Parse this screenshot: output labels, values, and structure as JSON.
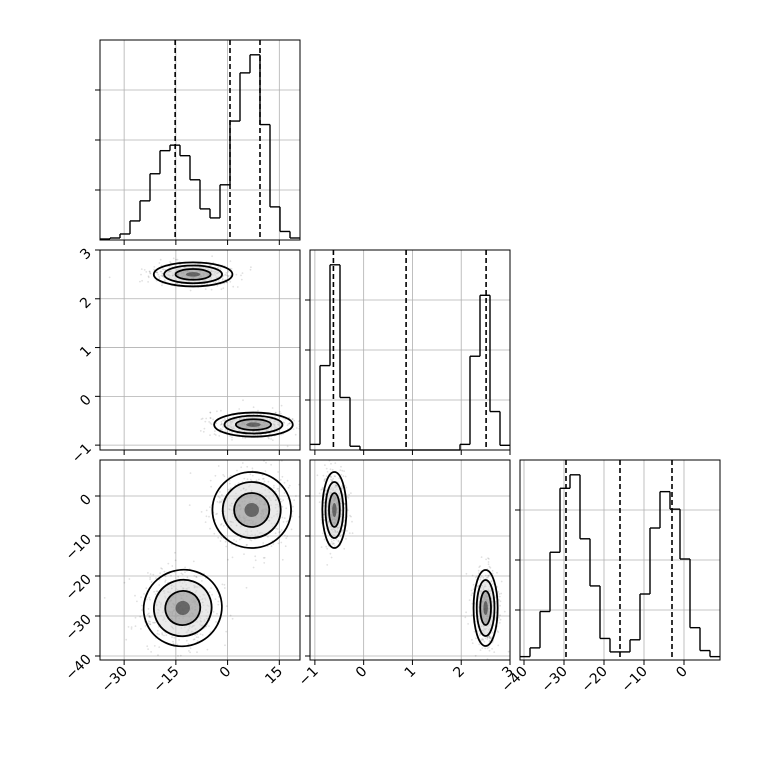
{
  "chart_data": {
    "type": "corner",
    "parameter_count": 3,
    "grid": true,
    "axes": [
      {
        "ticks": [
          -30,
          -15,
          0,
          15
        ],
        "range": [
          -37,
          21
        ]
      },
      {
        "ticks": [
          -1,
          0,
          1,
          2,
          3
        ],
        "range": [
          -1.1,
          3.0
        ]
      },
      {
        "ticks": [
          -40,
          -30,
          -20,
          -10,
          0
        ],
        "range": [
          -41,
          9
        ]
      }
    ],
    "histograms": [
      {
        "param": 0,
        "edges": [
          -37,
          -34.1,
          -31.2,
          -28.3,
          -25.4,
          -22.5,
          -19.6,
          -16.7,
          -13.8,
          -10.9,
          -8,
          -5.1,
          -2.2,
          0.7,
          3.6,
          6.5,
          9.4,
          12.3,
          15.2,
          18.1,
          21
        ],
        "counts": [
          2,
          4,
          12,
          38,
          78,
          132,
          178,
          189,
          168,
          120,
          62,
          44,
          110,
          237,
          333,
          369,
          230,
          66,
          17,
          4
        ],
        "quantiles": [
          -15.2,
          0.7,
          9.4
        ]
      },
      {
        "param": 1,
        "edges": [
          -1.1,
          -0.895,
          -0.69,
          -0.485,
          -0.28,
          -0.075,
          0.13,
          0.335,
          0.54,
          0.745,
          0.95,
          1.155,
          1.36,
          1.565,
          1.77,
          1.975,
          2.18,
          2.385,
          2.59,
          2.795,
          3.0
        ],
        "counts": [
          12,
          180,
          395,
          112,
          8,
          0,
          0,
          0,
          0,
          0,
          0,
          0,
          0,
          0,
          0,
          12,
          200,
          330,
          82,
          10
        ],
        "quantiles": [
          -0.62,
          0.87,
          2.51
        ]
      },
      {
        "param": 2,
        "edges": [
          -41,
          -38.5,
          -36,
          -33.5,
          -31,
          -28.5,
          -26,
          -23.5,
          -21,
          -18.5,
          -16,
          -13.5,
          -11,
          -8.5,
          -6,
          -3.5,
          -1,
          1.5,
          4,
          6.5,
          9
        ],
        "counts": [
          5,
          18,
          72,
          160,
          255,
          275,
          180,
          110,
          32,
          12,
          12,
          30,
          98,
          196,
          250,
          224,
          150,
          48,
          14,
          5
        ],
        "quantiles": [
          -29.5,
          -16,
          -3
        ]
      }
    ],
    "joint_panels": [
      {
        "x_param": 0,
        "y_param": 1,
        "modes": [
          {
            "x": -10,
            "y": 2.5
          },
          {
            "x": 7.5,
            "y": -0.58
          }
        ]
      },
      {
        "x_param": 0,
        "y_param": 2,
        "modes": [
          {
            "x": -13,
            "y": -28
          },
          {
            "x": 7,
            "y": -3.5
          }
        ]
      },
      {
        "x_param": 1,
        "y_param": 2,
        "modes": [
          {
            "x": -0.6,
            "y": -3.5
          },
          {
            "x": 2.5,
            "y": -28
          }
        ]
      }
    ]
  }
}
